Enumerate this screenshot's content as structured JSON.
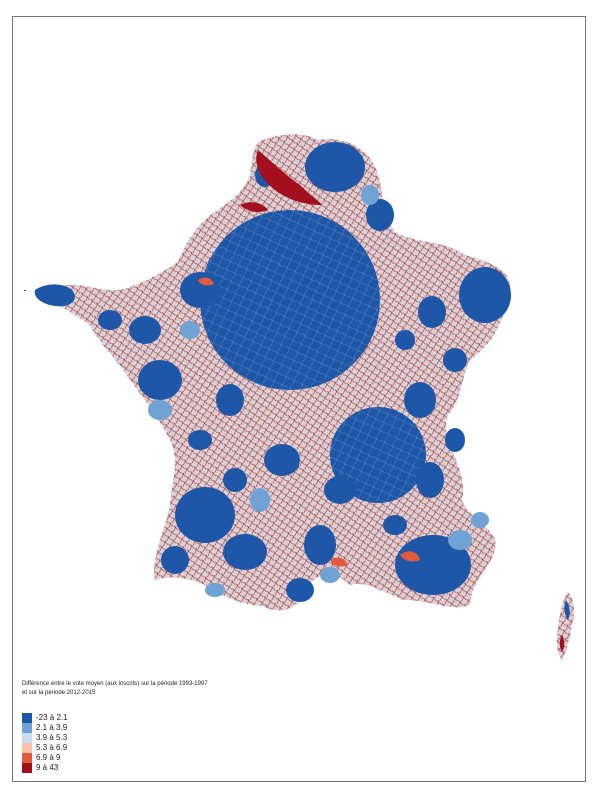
{
  "map": {
    "title": "Différence entre le vote moyen (aux inscrits) sur la période 1993-1997",
    "subtitle": "et sur la période 2012-2015"
  },
  "legend": {
    "items": [
      {
        "label": "-23 à 2.1",
        "color": "#1f57a8"
      },
      {
        "label": "2.1 à 3.9",
        "color": "#6fa3d6"
      },
      {
        "label": "3.9 à 5.3",
        "color": "#c7dcef"
      },
      {
        "label": "5.3 à 6.9",
        "color": "#f9c2a6"
      },
      {
        "label": "6.9 à 9",
        "color": "#e35b3e"
      },
      {
        "label": "9 à 43",
        "color": "#a2101d"
      }
    ]
  },
  "colors": {
    "low": "#1f57a8",
    "mid_low": "#6fa3d6",
    "light": "#c7dcef",
    "peach": "#f9c2a6",
    "red": "#e35b3e",
    "dark_red": "#a2101d"
  }
}
